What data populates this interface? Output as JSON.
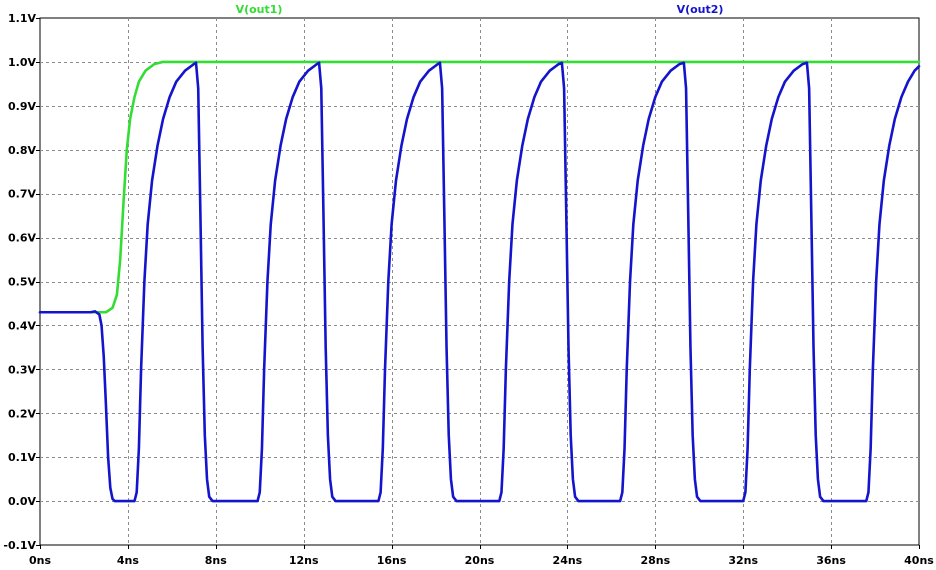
{
  "chart_data": {
    "type": "line",
    "x_unit": "ns",
    "y_unit": "V",
    "xlim": [
      0,
      40
    ],
    "ylim": [
      -0.1,
      1.1
    ],
    "x_ticks": [
      0,
      4,
      8,
      12,
      16,
      20,
      24,
      28,
      32,
      36,
      40
    ],
    "x_tick_labels": [
      "0ns",
      "4ns",
      "8ns",
      "12ns",
      "16ns",
      "20ns",
      "24ns",
      "28ns",
      "32ns",
      "36ns",
      "40ns"
    ],
    "y_ticks": [
      -0.1,
      0.0,
      0.1,
      0.2,
      0.3,
      0.4,
      0.5,
      0.6,
      0.7,
      0.8,
      0.9,
      1.0,
      1.1
    ],
    "y_tick_labels": [
      "-0.1V",
      "0.0V",
      "0.1V",
      "0.2V",
      "0.3V",
      "0.4V",
      "0.5V",
      "0.6V",
      "0.7V",
      "0.8V",
      "0.9V",
      "1.0V",
      "1.1V"
    ],
    "grid": true,
    "legend_placement": "top",
    "series": [
      {
        "name": "V(out1)",
        "color": "#33dd33",
        "points": [
          [
            0,
            0.43
          ],
          [
            2.6,
            0.43
          ],
          [
            3.0,
            0.43
          ],
          [
            3.3,
            0.44
          ],
          [
            3.5,
            0.47
          ],
          [
            3.65,
            0.55
          ],
          [
            3.8,
            0.68
          ],
          [
            3.95,
            0.8
          ],
          [
            4.1,
            0.87
          ],
          [
            4.3,
            0.92
          ],
          [
            4.5,
            0.955
          ],
          [
            4.8,
            0.98
          ],
          [
            5.2,
            0.995
          ],
          [
            5.6,
            1.0
          ],
          [
            40,
            1.0
          ]
        ]
      },
      {
        "name": "V(out2)",
        "color": "#1414cc",
        "points": [
          [
            0,
            0.43
          ],
          [
            2.3,
            0.43
          ],
          [
            2.5,
            0.432
          ],
          [
            2.7,
            0.425
          ],
          [
            2.8,
            0.4
          ],
          [
            2.9,
            0.33
          ],
          [
            3.0,
            0.22
          ],
          [
            3.1,
            0.1
          ],
          [
            3.2,
            0.03
          ],
          [
            3.3,
            0.005
          ],
          [
            3.4,
            0.0
          ],
          [
            4.3,
            0.0
          ],
          [
            4.4,
            0.02
          ],
          [
            4.5,
            0.12
          ],
          [
            4.6,
            0.3
          ],
          [
            4.75,
            0.5
          ],
          [
            4.9,
            0.63
          ],
          [
            5.1,
            0.73
          ],
          [
            5.35,
            0.81
          ],
          [
            5.6,
            0.87
          ],
          [
            5.9,
            0.92
          ],
          [
            6.2,
            0.955
          ],
          [
            6.6,
            0.98
          ],
          [
            7.0,
            0.995
          ],
          [
            7.1,
            0.998
          ],
          [
            7.2,
            0.94
          ],
          [
            7.3,
            0.65
          ],
          [
            7.4,
            0.35
          ],
          [
            7.5,
            0.15
          ],
          [
            7.6,
            0.05
          ],
          [
            7.7,
            0.01
          ],
          [
            7.85,
            0.0
          ],
          [
            9.9,
            0.0
          ],
          [
            10.0,
            0.02
          ],
          [
            10.1,
            0.12
          ],
          [
            10.2,
            0.3
          ],
          [
            10.35,
            0.5
          ],
          [
            10.5,
            0.63
          ],
          [
            10.7,
            0.73
          ],
          [
            10.95,
            0.81
          ],
          [
            11.2,
            0.87
          ],
          [
            11.5,
            0.92
          ],
          [
            11.8,
            0.955
          ],
          [
            12.2,
            0.98
          ],
          [
            12.6,
            0.995
          ],
          [
            12.7,
            0.998
          ],
          [
            12.8,
            0.94
          ],
          [
            12.9,
            0.65
          ],
          [
            13.0,
            0.35
          ],
          [
            13.1,
            0.15
          ],
          [
            13.2,
            0.05
          ],
          [
            13.3,
            0.01
          ],
          [
            13.45,
            0.0
          ],
          [
            15.4,
            0.0
          ],
          [
            15.5,
            0.02
          ],
          [
            15.6,
            0.12
          ],
          [
            15.7,
            0.3
          ],
          [
            15.85,
            0.5
          ],
          [
            16.0,
            0.63
          ],
          [
            16.2,
            0.73
          ],
          [
            16.45,
            0.81
          ],
          [
            16.7,
            0.87
          ],
          [
            17.0,
            0.92
          ],
          [
            17.3,
            0.955
          ],
          [
            17.7,
            0.98
          ],
          [
            18.1,
            0.995
          ],
          [
            18.2,
            0.998
          ],
          [
            18.3,
            0.94
          ],
          [
            18.4,
            0.65
          ],
          [
            18.5,
            0.35
          ],
          [
            18.6,
            0.15
          ],
          [
            18.7,
            0.05
          ],
          [
            18.8,
            0.01
          ],
          [
            18.95,
            0.0
          ],
          [
            20.9,
            0.0
          ],
          [
            21.0,
            0.02
          ],
          [
            21.1,
            0.12
          ],
          [
            21.2,
            0.3
          ],
          [
            21.35,
            0.5
          ],
          [
            21.5,
            0.63
          ],
          [
            21.7,
            0.73
          ],
          [
            21.95,
            0.81
          ],
          [
            22.2,
            0.87
          ],
          [
            22.5,
            0.92
          ],
          [
            22.8,
            0.955
          ],
          [
            23.2,
            0.98
          ],
          [
            23.6,
            0.995
          ],
          [
            23.75,
            0.998
          ],
          [
            23.85,
            0.94
          ],
          [
            23.95,
            0.65
          ],
          [
            24.05,
            0.35
          ],
          [
            24.15,
            0.15
          ],
          [
            24.25,
            0.05
          ],
          [
            24.35,
            0.01
          ],
          [
            24.5,
            0.0
          ],
          [
            26.4,
            0.0
          ],
          [
            26.5,
            0.02
          ],
          [
            26.6,
            0.12
          ],
          [
            26.7,
            0.3
          ],
          [
            26.85,
            0.5
          ],
          [
            27.0,
            0.63
          ],
          [
            27.2,
            0.73
          ],
          [
            27.45,
            0.81
          ],
          [
            27.7,
            0.87
          ],
          [
            28.0,
            0.92
          ],
          [
            28.3,
            0.955
          ],
          [
            28.7,
            0.98
          ],
          [
            29.1,
            0.995
          ],
          [
            29.3,
            0.998
          ],
          [
            29.4,
            0.94
          ],
          [
            29.5,
            0.65
          ],
          [
            29.6,
            0.35
          ],
          [
            29.7,
            0.15
          ],
          [
            29.8,
            0.05
          ],
          [
            29.9,
            0.01
          ],
          [
            30.05,
            0.0
          ],
          [
            32.0,
            0.0
          ],
          [
            32.1,
            0.02
          ],
          [
            32.2,
            0.12
          ],
          [
            32.3,
            0.3
          ],
          [
            32.45,
            0.5
          ],
          [
            32.6,
            0.63
          ],
          [
            32.8,
            0.73
          ],
          [
            33.05,
            0.81
          ],
          [
            33.3,
            0.87
          ],
          [
            33.6,
            0.92
          ],
          [
            33.9,
            0.955
          ],
          [
            34.3,
            0.98
          ],
          [
            34.7,
            0.995
          ],
          [
            34.9,
            0.998
          ],
          [
            35.0,
            0.94
          ],
          [
            35.1,
            0.65
          ],
          [
            35.2,
            0.35
          ],
          [
            35.3,
            0.15
          ],
          [
            35.4,
            0.05
          ],
          [
            35.5,
            0.01
          ],
          [
            35.65,
            0.0
          ],
          [
            37.6,
            0.0
          ],
          [
            37.7,
            0.02
          ],
          [
            37.8,
            0.12
          ],
          [
            37.9,
            0.3
          ],
          [
            38.05,
            0.5
          ],
          [
            38.2,
            0.63
          ],
          [
            38.4,
            0.73
          ],
          [
            38.65,
            0.81
          ],
          [
            38.9,
            0.87
          ],
          [
            39.2,
            0.92
          ],
          [
            39.5,
            0.955
          ],
          [
            39.8,
            0.98
          ],
          [
            40.0,
            0.99
          ]
        ]
      }
    ]
  }
}
